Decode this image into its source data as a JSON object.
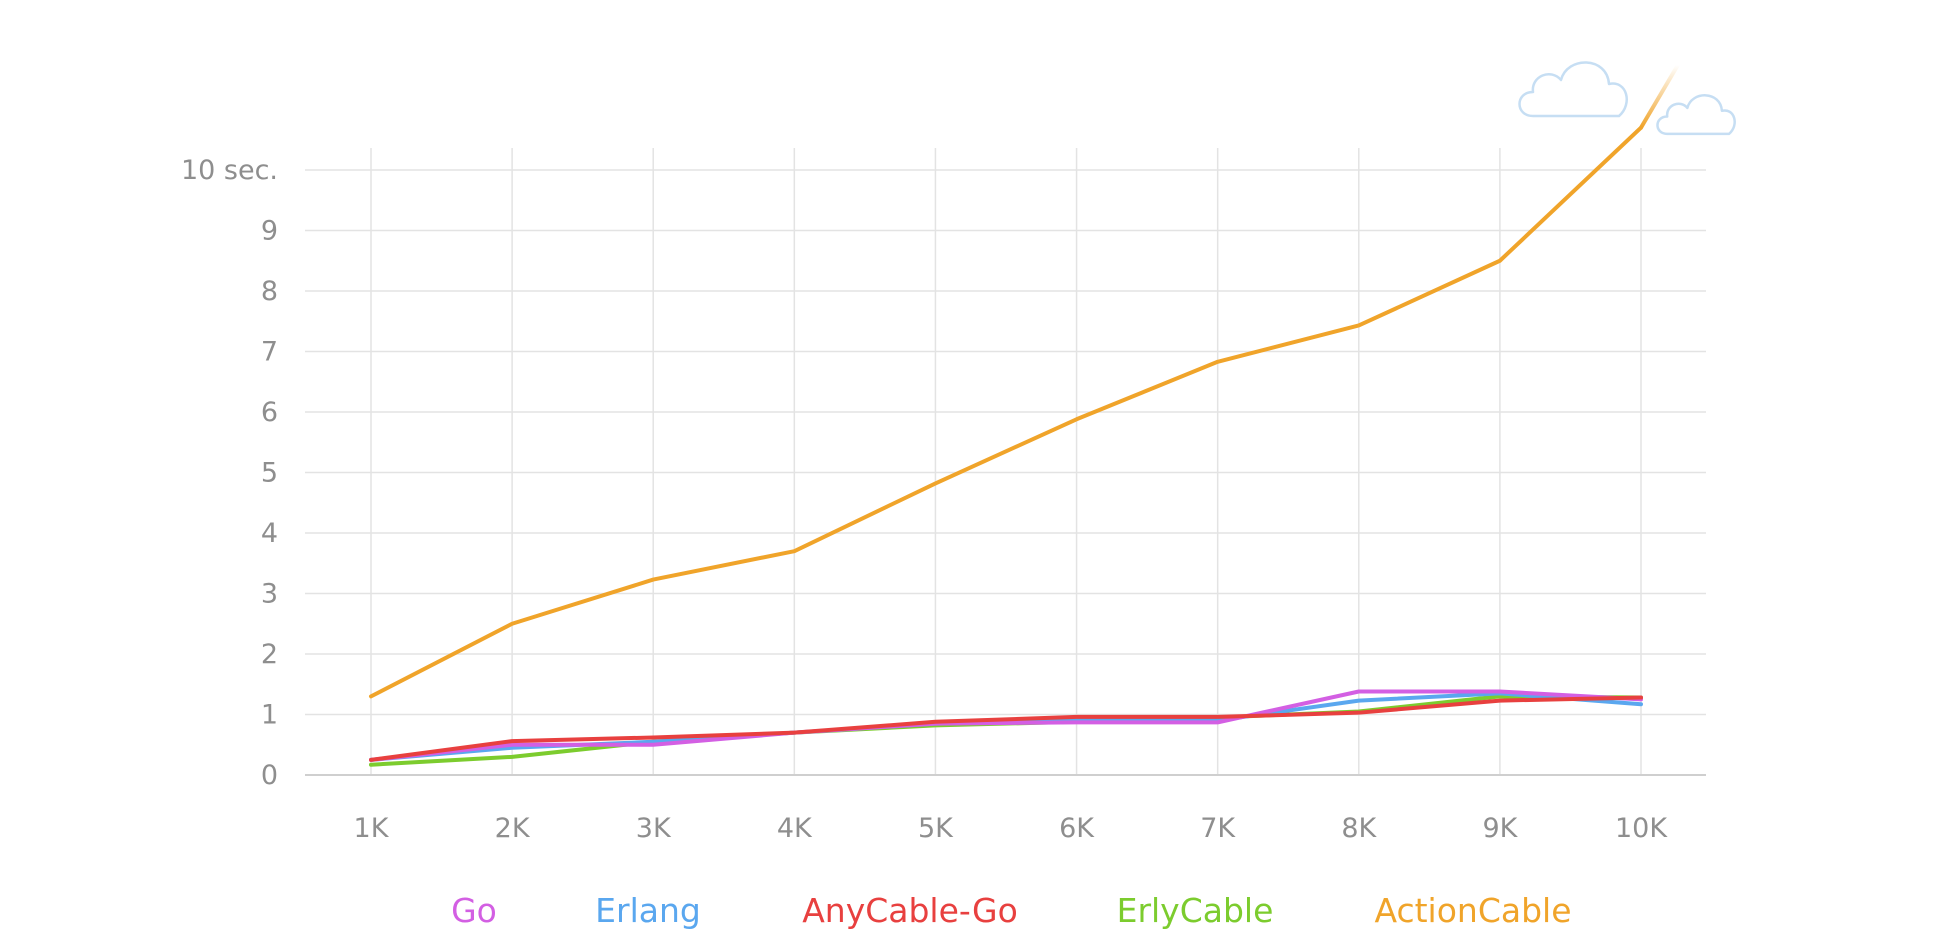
{
  "chart_data": {
    "type": "line",
    "x": [
      "1K",
      "2K",
      "3K",
      "4K",
      "5K",
      "6K",
      "7K",
      "8K",
      "9K",
      "10K"
    ],
    "y_ticks": [
      "0",
      "1",
      "2",
      "3",
      "4",
      "5",
      "6",
      "7",
      "8",
      "9",
      "10 sec."
    ],
    "ylim": [
      0,
      10
    ],
    "grid": true,
    "legend_position": "bottom",
    "series": [
      {
        "name": "Go",
        "color": "#d35fe3",
        "values": [
          0.25,
          0.5,
          0.5,
          0.7,
          0.85,
          0.87,
          0.87,
          1.38,
          1.38,
          1.25
        ]
      },
      {
        "name": "Erlang",
        "color": "#5aa7ef",
        "values": [
          0.25,
          0.45,
          0.55,
          0.7,
          0.85,
          0.9,
          0.9,
          1.23,
          1.35,
          1.17
        ]
      },
      {
        "name": "AnyCable-Go",
        "color": "#e8403f",
        "values": [
          0.25,
          0.56,
          0.62,
          0.7,
          0.88,
          0.96,
          0.96,
          1.03,
          1.23,
          1.28
        ]
      },
      {
        "name": "ErlyCable",
        "color": "#7ccc2e",
        "values": [
          0.17,
          0.3,
          0.55,
          0.7,
          0.82,
          0.88,
          0.95,
          1.05,
          1.3,
          1.28
        ]
      },
      {
        "name": "ActionCable",
        "color": "#f0a42a",
        "values": [
          1.3,
          2.5,
          3.23,
          3.7,
          4.82,
          5.88,
          6.83,
          7.43,
          8.5,
          10.7
        ],
        "overflow_beyond_axis": true
      }
    ]
  },
  "decorations": {
    "cloud_icons": [
      "cloud-icon",
      "cloud-icon"
    ],
    "cloud_color": "#c6def3",
    "grid_color": "#e3e3e3",
    "axis_color": "#cfcfcf",
    "tick_color": "#8e8e8e"
  }
}
